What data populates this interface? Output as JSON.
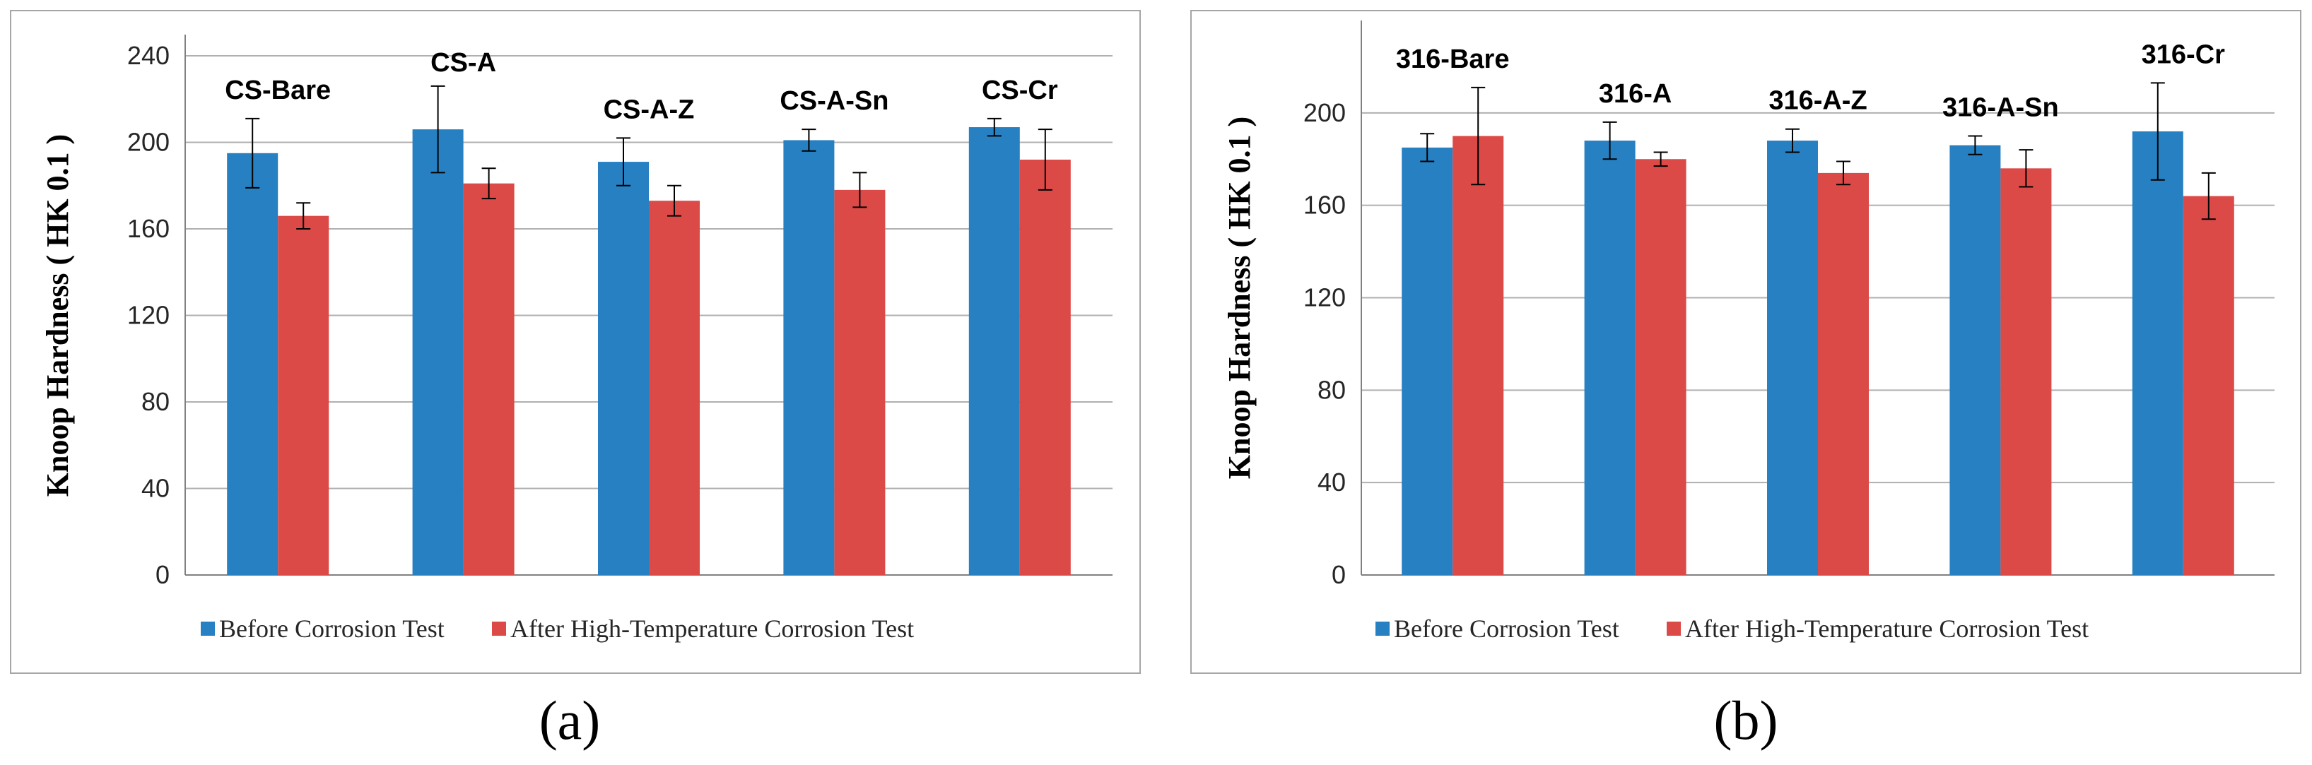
{
  "panel_labels": {
    "a": "(a)",
    "b": "(b)"
  },
  "colors": {
    "before": "#2680c2",
    "after": "#dc4a48",
    "grid": "#b0b0b0",
    "axis": "#808080",
    "error": "#000000"
  },
  "chart_data": [
    {
      "type": "bar",
      "panel": "a",
      "categories": [
        "CS-Bare",
        "CS-A",
        "CS-A-Z",
        "CS-A-Sn",
        "CS-Cr"
      ],
      "ylabel": "Knoop Hardness ( HK 0.1 )",
      "xlabel": "",
      "ylim": [
        0,
        240
      ],
      "yticks": [
        0,
        40,
        80,
        120,
        160,
        200,
        240
      ],
      "grid": true,
      "legend_position": "bottom",
      "series": [
        {
          "name": "Before Corrosion Test",
          "values": [
            195,
            206,
            191,
            201,
            207
          ],
          "errors": [
            16,
            20,
            11,
            5,
            4
          ]
        },
        {
          "name": "After High-Temperature Corrosion Test",
          "values": [
            166,
            181,
            173,
            178,
            192
          ],
          "errors": [
            6,
            7,
            7,
            8,
            14
          ]
        }
      ]
    },
    {
      "type": "bar",
      "panel": "b",
      "categories": [
        "316-Bare",
        "316-A",
        "316-A-Z",
        "316-A-Sn",
        "316-Cr"
      ],
      "ylabel": "Knoop Hardness ( HK 0.1 )",
      "xlabel": "",
      "ylim": [
        0,
        240
      ],
      "yticks": [
        0,
        40,
        80,
        120,
        160,
        200
      ],
      "grid": true,
      "legend_position": "bottom",
      "series": [
        {
          "name": "Before Corrosion Test",
          "values": [
            185,
            188,
            188,
            186,
            192
          ],
          "errors": [
            6,
            8,
            5,
            4,
            21
          ]
        },
        {
          "name": "After High-Temperature Corrosion Test",
          "values": [
            190,
            180,
            174,
            176,
            164
          ],
          "errors": [
            21,
            3,
            5,
            8,
            10
          ]
        }
      ]
    }
  ]
}
